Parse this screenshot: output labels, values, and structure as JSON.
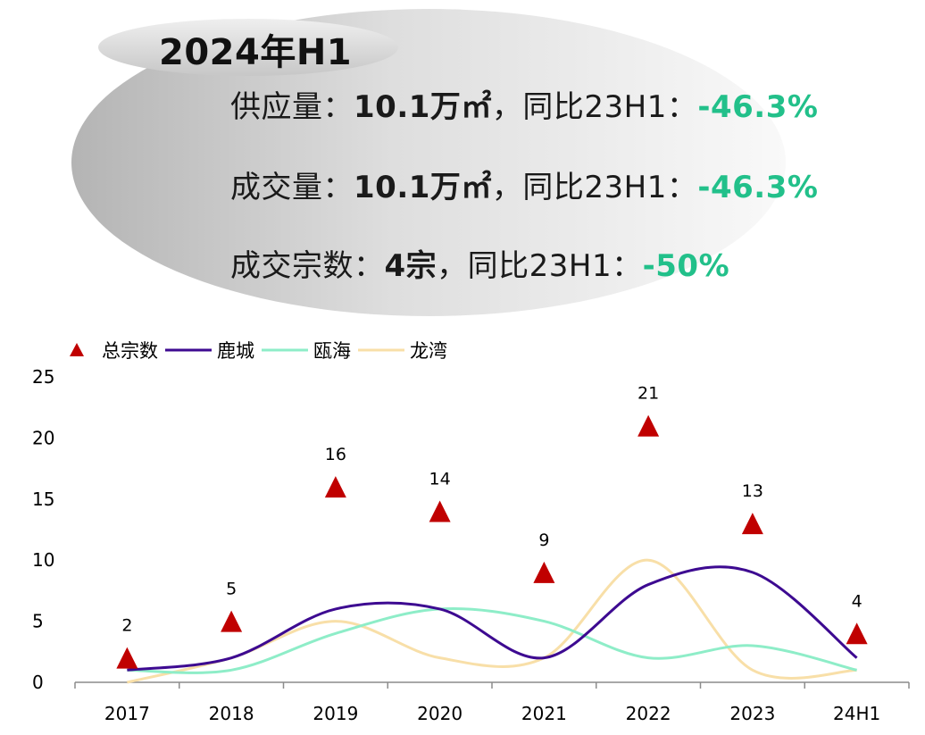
{
  "summary": {
    "period_title": "2024年H1",
    "colors": {
      "negative": "#22c08a"
    },
    "lines": [
      {
        "label": "供应量：",
        "value": "10.1万㎡",
        "sep": "，",
        "compare": "同比23H1：",
        "change": "-46.3%"
      },
      {
        "label": "成交量：",
        "value": "10.1万㎡",
        "sep": "，",
        "compare": "同比23H1：",
        "change": "-46.3%"
      },
      {
        "label": "成交宗数：",
        "value": "4宗",
        "sep": "，",
        "compare": "同比23H1：",
        "change": "-50%"
      }
    ]
  },
  "chart_data": {
    "type": "line",
    "categories": [
      "2017",
      "2018",
      "2019",
      "2020",
      "2021",
      "2022",
      "2023",
      "24H1"
    ],
    "ylim": [
      0,
      25
    ],
    "yticks": [
      "0",
      "5",
      "10",
      "15",
      "20",
      "25"
    ],
    "legend_position": "top-left",
    "series": [
      {
        "name": "总宗数",
        "type": "scatter",
        "marker": "triangle",
        "color": "#c00000",
        "show_labels": true,
        "values": [
          2,
          5,
          16,
          14,
          9,
          21,
          13,
          4
        ]
      },
      {
        "name": "鹿城",
        "type": "line",
        "color": "#3d0a91",
        "values": [
          1,
          2,
          6,
          6,
          2,
          8,
          9,
          2
        ]
      },
      {
        "name": "瓯海",
        "type": "line",
        "color": "#8eedc8",
        "values": [
          1,
          1,
          4,
          6,
          5,
          2,
          3,
          1
        ]
      },
      {
        "name": "龙湾",
        "type": "line",
        "color": "#f8dfa8",
        "values": [
          0,
          2,
          5,
          2,
          2,
          10,
          1,
          1
        ]
      }
    ]
  }
}
